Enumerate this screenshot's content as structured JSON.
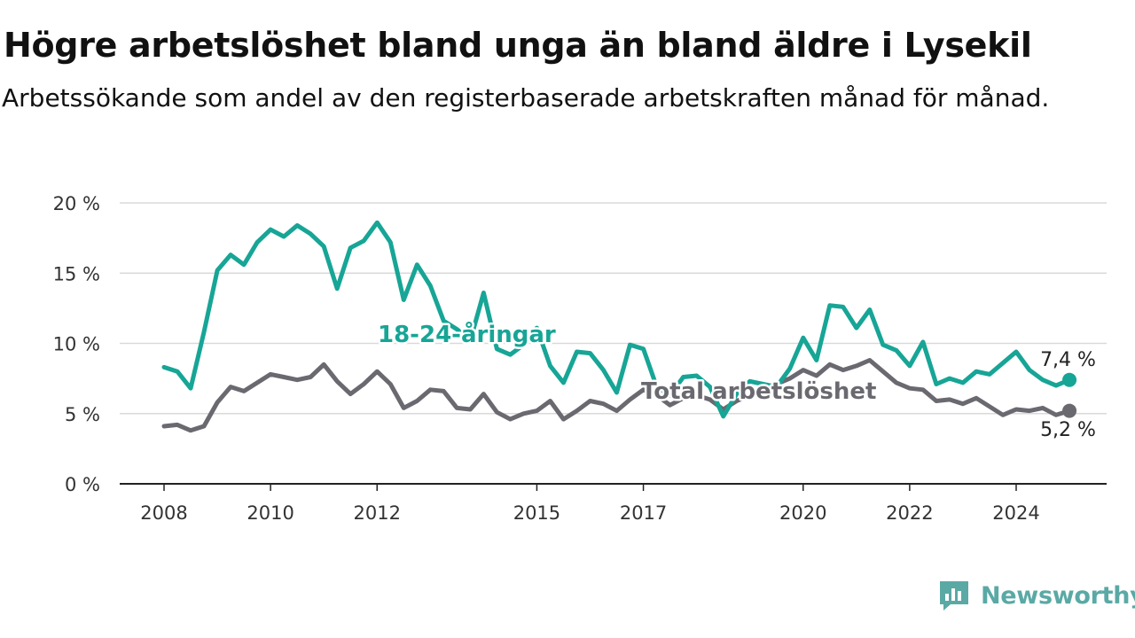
{
  "header": {
    "title": "Högre arbetslöshet bland unga än bland äldre i Lysekil",
    "subtitle": "Arbetssökande som andel av den registerbaserade arbetskraften månad för månad."
  },
  "brand": {
    "name": "Newsworthy",
    "icon": "newsworthy-logo-icon",
    "color": "#5aa9a5"
  },
  "chart_data": {
    "type": "line",
    "x_unit": "year",
    "y_unit": "%",
    "xlim": [
      2007.6,
      2025.9
    ],
    "ylim": [
      0,
      20
    ],
    "x_ticks": [
      2008,
      2010,
      2012,
      2015,
      2017,
      2020,
      2022,
      2024
    ],
    "x_tick_labels": [
      "2008",
      "2010",
      "2012",
      "2015",
      "2017",
      "2020",
      "2022",
      "2024"
    ],
    "y_ticks": [
      0,
      5,
      10,
      15,
      20
    ],
    "y_tick_labels": [
      "0 %",
      "5 %",
      "10 %",
      "15 %",
      "20 %"
    ],
    "grid": "horizontal",
    "series": [
      {
        "name": "18-24-åringar",
        "color": "#17a596",
        "end_label": "7,4 %",
        "x": [
          2008.0,
          2008.25,
          2008.5,
          2008.75,
          2009.0,
          2009.25,
          2009.5,
          2009.75,
          2010.0,
          2010.25,
          2010.5,
          2010.75,
          2011.0,
          2011.25,
          2011.5,
          2011.75,
          2012.0,
          2012.25,
          2012.5,
          2012.75,
          2013.0,
          2013.25,
          2013.5,
          2013.75,
          2014.0,
          2014.25,
          2014.5,
          2014.75,
          2015.0,
          2015.25,
          2015.5,
          2015.75,
          2016.0,
          2016.25,
          2016.5,
          2016.75,
          2017.0,
          2017.25,
          2017.5,
          2017.75,
          2018.0,
          2018.25,
          2018.5,
          2018.75,
          2019.0,
          2019.25,
          2019.5,
          2019.75,
          2020.0,
          2020.25,
          2020.5,
          2020.75,
          2021.0,
          2021.25,
          2021.5,
          2021.75,
          2022.0,
          2022.25,
          2022.5,
          2022.75,
          2023.0,
          2023.25,
          2023.5,
          2023.75,
          2024.0,
          2024.25,
          2024.5,
          2024.75,
          2025.0
        ],
        "values": [
          8.3,
          8.0,
          6.8,
          10.8,
          15.2,
          16.3,
          15.6,
          17.2,
          18.1,
          17.6,
          18.4,
          17.8,
          16.9,
          13.9,
          16.8,
          17.3,
          18.6,
          17.2,
          13.1,
          15.6,
          14.1,
          11.6,
          11.0,
          10.2,
          13.6,
          9.6,
          9.2,
          9.9,
          11.1,
          8.4,
          7.2,
          9.4,
          9.3,
          8.1,
          6.5,
          9.9,
          9.6,
          6.9,
          6.3,
          7.6,
          7.7,
          6.9,
          4.8,
          6.4,
          7.3,
          7.1,
          6.9,
          8.2,
          10.4,
          8.8,
          12.7,
          12.6,
          11.1,
          12.4,
          9.9,
          9.5,
          8.4,
          10.1,
          7.1,
          7.5,
          7.2,
          8.0,
          7.8,
          8.6,
          9.4,
          8.1,
          7.4,
          7.0,
          7.4
        ]
      },
      {
        "name": "Total arbetslöshet",
        "color": "#6b6970",
        "end_label": "5,2 %",
        "x": [
          2008.0,
          2008.25,
          2008.5,
          2008.75,
          2009.0,
          2009.25,
          2009.5,
          2009.75,
          2010.0,
          2010.25,
          2010.5,
          2010.75,
          2011.0,
          2011.25,
          2011.5,
          2011.75,
          2012.0,
          2012.25,
          2012.5,
          2012.75,
          2013.0,
          2013.25,
          2013.5,
          2013.75,
          2014.0,
          2014.25,
          2014.5,
          2014.75,
          2015.0,
          2015.25,
          2015.5,
          2015.75,
          2016.0,
          2016.25,
          2016.5,
          2016.75,
          2017.0,
          2017.25,
          2017.5,
          2017.75,
          2018.0,
          2018.25,
          2018.5,
          2018.75,
          2019.0,
          2019.25,
          2019.5,
          2019.75,
          2020.0,
          2020.25,
          2020.5,
          2020.75,
          2021.0,
          2021.25,
          2021.5,
          2021.75,
          2022.0,
          2022.25,
          2022.5,
          2022.75,
          2023.0,
          2023.25,
          2023.5,
          2023.75,
          2024.0,
          2024.25,
          2024.5,
          2024.75,
          2025.0
        ],
        "values": [
          4.1,
          4.2,
          3.8,
          4.1,
          5.8,
          6.9,
          6.6,
          7.2,
          7.8,
          7.6,
          7.4,
          7.6,
          8.5,
          7.3,
          6.4,
          7.1,
          8.0,
          7.1,
          5.4,
          5.9,
          6.7,
          6.6,
          5.4,
          5.3,
          6.4,
          5.1,
          4.6,
          5.0,
          5.2,
          5.9,
          4.6,
          5.2,
          5.9,
          5.7,
          5.2,
          6.0,
          6.7,
          6.3,
          5.6,
          6.1,
          6.3,
          6.0,
          5.3,
          5.9,
          6.3,
          6.6,
          7.1,
          7.5,
          8.1,
          7.7,
          8.5,
          8.1,
          8.4,
          8.8,
          8.0,
          7.2,
          6.8,
          6.7,
          5.9,
          6.0,
          5.7,
          6.1,
          5.5,
          4.9,
          5.3,
          5.2,
          5.4,
          4.9,
          5.2
        ]
      }
    ]
  }
}
